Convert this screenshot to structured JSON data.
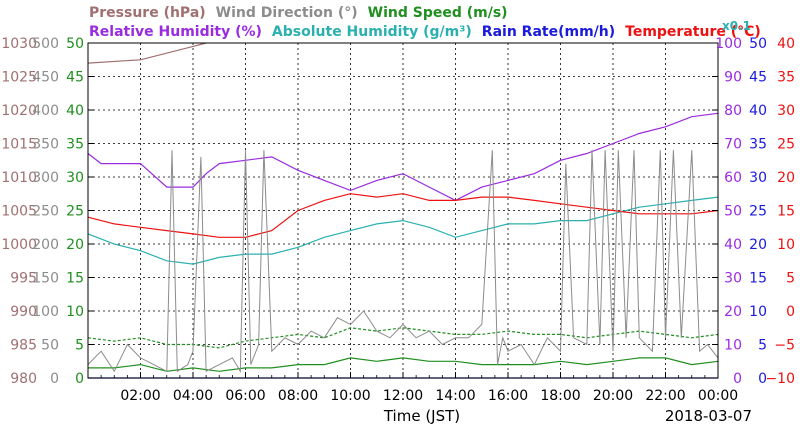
{
  "chart_data": {
    "type": "line",
    "date_label": "2018-03-07",
    "xlabel": "Time (JST)",
    "x_ticks": [
      "02:00",
      "04:00",
      "06:00",
      "08:00",
      "10:00",
      "12:00",
      "14:00",
      "16:00",
      "18:00",
      "20:00",
      "22:00",
      "00:00"
    ],
    "x_range_hours": [
      0,
      24
    ],
    "grid": true,
    "header": {
      "row1": [
        {
          "text": "Pressure (hPa)",
          "color": "#a07070"
        },
        {
          "text": "Wind Direction (°)",
          "color": "#8c8c8c"
        },
        {
          "text": "Wind Speed (m/s)",
          "color": "#1f8f1f"
        }
      ],
      "row2": [
        {
          "text": "Relative Humidity (%)",
          "color": "#9a2be0"
        },
        {
          "text": "Absolute Humidity (g/m³)",
          "color": "#2ab0b0"
        },
        {
          "text": "Rain Rate(mm/h)",
          "color": "#1a1adc"
        },
        {
          "text": "Temperature (°C)",
          "color": "#ee1111"
        }
      ],
      "multiplier": "x0.1"
    },
    "axes": {
      "pressure": {
        "color": "#a07070",
        "ticks": [
          "1030",
          "1025",
          "1020",
          "1015",
          "1010",
          "1005",
          "1000",
          "995",
          "990",
          "985",
          "980"
        ],
        "range": [
          980,
          1030
        ]
      },
      "wind_direction": {
        "color": "#8c8c8c",
        "ticks": [
          "500",
          "450",
          "400",
          "350",
          "300",
          "250",
          "200",
          "150",
          "100",
          "50",
          "0"
        ],
        "range": [
          0,
          500
        ]
      },
      "wind_speed": {
        "color": "#1f8f1f",
        "ticks": [
          "50",
          "45",
          "40",
          "35",
          "30",
          "25",
          "20",
          "15",
          "10",
          "5",
          "0"
        ],
        "range": [
          0,
          50
        ]
      },
      "humidity": {
        "color": "#9a2be0",
        "ticks": [
          "100",
          "90",
          "80",
          "70",
          "60",
          "50",
          "40",
          "30",
          "20",
          "10",
          "0"
        ],
        "range": [
          0,
          100
        ]
      },
      "rain_rate": {
        "color": "#1a1adc",
        "ticks": [
          "50",
          "45",
          "40",
          "35",
          "30",
          "25",
          "20",
          "15",
          "10",
          "5",
          "0"
        ],
        "range": [
          0,
          50
        ]
      },
      "temperature": {
        "color": "#ee1111",
        "ticks": [
          "40",
          "35",
          "30",
          "25",
          "20",
          "15",
          "10",
          "5",
          "0",
          "−5",
          "−10"
        ],
        "range": [
          -10,
          40
        ]
      }
    },
    "series": [
      {
        "name": "Pressure (hPa)",
        "color": "#a07070",
        "x": [
          0,
          2,
          4,
          4.5
        ],
        "y": [
          1027,
          1027.5,
          1029.5,
          1030
        ]
      },
      {
        "name": "Relative Humidity (%)",
        "color": "#9a2be0",
        "x": [
          0,
          0.5,
          1,
          2,
          3,
          4,
          4.5,
          5,
          6,
          7,
          8,
          9,
          10,
          11,
          12,
          13,
          14,
          15,
          16,
          17,
          18,
          19,
          20,
          21,
          22,
          23,
          24
        ],
        "y": [
          67,
          64,
          64,
          64,
          57,
          57,
          61,
          64,
          65,
          66,
          62,
          59,
          56,
          59,
          61,
          57,
          53,
          57,
          59,
          61,
          65,
          67,
          70,
          73,
          75,
          78,
          79
        ]
      },
      {
        "name": "Absolute Humidity (g/m³)",
        "color": "#2ab0b0",
        "x": [
          0,
          1,
          2,
          3,
          4,
          5,
          6,
          7,
          8,
          9,
          10,
          11,
          12,
          13,
          14,
          15,
          16,
          17,
          18,
          19,
          20,
          21,
          22,
          23,
          24
        ],
        "y": [
          43,
          40,
          38,
          35,
          34,
          36,
          37,
          37,
          39,
          42,
          44,
          46,
          47,
          45,
          42,
          44,
          46,
          46,
          47,
          47,
          49,
          51,
          52,
          53,
          54
        ]
      },
      {
        "name": "Rain Rate(mm/h)",
        "color": "#1a1adc",
        "x": [
          0,
          24
        ],
        "y": [
          0,
          0
        ]
      },
      {
        "name": "Temperature (°C)",
        "color": "#ee1111",
        "x": [
          0,
          1,
          2,
          3,
          4,
          5,
          6,
          7,
          8,
          9,
          10,
          11,
          12,
          13,
          14,
          15,
          16,
          17,
          18,
          19,
          20,
          21,
          22,
          23,
          24
        ],
        "y": [
          14,
          13,
          12.5,
          12,
          11.5,
          11,
          11,
          12,
          15,
          16.5,
          17.5,
          17,
          17.5,
          16.5,
          16.5,
          17,
          17,
          16.5,
          16,
          15.5,
          15,
          14.5,
          14.5,
          14.5,
          15
        ]
      },
      {
        "name": "Wind Speed (m/s)",
        "color": "#1f8f1f",
        "x": [
          0,
          1,
          2,
          3,
          4,
          5,
          6,
          7,
          8,
          9,
          10,
          11,
          12,
          13,
          14,
          15,
          16,
          17,
          18,
          19,
          20,
          21,
          22,
          23,
          24
        ],
        "y": [
          1.5,
          1.5,
          2,
          1,
          1.5,
          1,
          1.5,
          1.5,
          2,
          2,
          3,
          2.5,
          3,
          2.5,
          2.5,
          2,
          2,
          2,
          2.5,
          2,
          2.5,
          3,
          3,
          2,
          2.5
        ]
      },
      {
        "name": "Wind Speed gust",
        "color": "#1f8f1f",
        "dashed": true,
        "x": [
          0,
          1,
          2,
          3,
          4,
          5,
          6,
          7,
          8,
          9,
          10,
          11,
          12,
          13,
          14,
          15,
          16,
          17,
          18,
          19,
          20,
          21,
          22,
          23,
          24
        ],
        "y": [
          6,
          5.5,
          6,
          5,
          5,
          4.5,
          5.5,
          6,
          6.5,
          6,
          7.5,
          7,
          7.5,
          7,
          6.5,
          6.5,
          7,
          6.5,
          6.5,
          6,
          6.5,
          7,
          6.5,
          6,
          6.5
        ]
      },
      {
        "name": "Wind Direction (°)",
        "color": "#8c8c8c",
        "x": [
          0,
          0.5,
          1,
          1.5,
          2,
          2.5,
          3,
          3.2,
          3.4,
          3.8,
          4,
          4.3,
          4.5,
          5,
          5.5,
          5.8,
          6,
          6.2,
          6.5,
          6.7,
          7,
          7.5,
          8,
          8.5,
          9,
          9.5,
          10,
          10.5,
          11,
          11.5,
          12,
          12.5,
          13,
          13.5,
          14,
          14.5,
          15,
          15.4,
          15.6,
          15.8,
          16,
          16.5,
          17,
          17.5,
          18,
          18.2,
          18.5,
          19,
          19.2,
          19.5,
          19.7,
          20,
          20.2,
          20.5,
          20.8,
          21,
          21.5,
          21.8,
          22,
          22.3,
          22.6,
          23,
          23.3,
          23.6,
          24
        ],
        "y": [
          20,
          40,
          10,
          50,
          30,
          20,
          10,
          340,
          10,
          20,
          40,
          330,
          10,
          20,
          30,
          10,
          340,
          20,
          50,
          340,
          40,
          60,
          50,
          70,
          60,
          90,
          80,
          100,
          70,
          60,
          80,
          60,
          70,
          50,
          60,
          60,
          80,
          340,
          20,
          60,
          40,
          50,
          20,
          60,
          40,
          320,
          60,
          50,
          340,
          50,
          340,
          40,
          340,
          60,
          340,
          60,
          40,
          340,
          60,
          340,
          60,
          340,
          40,
          50,
          30
        ]
      }
    ]
  }
}
